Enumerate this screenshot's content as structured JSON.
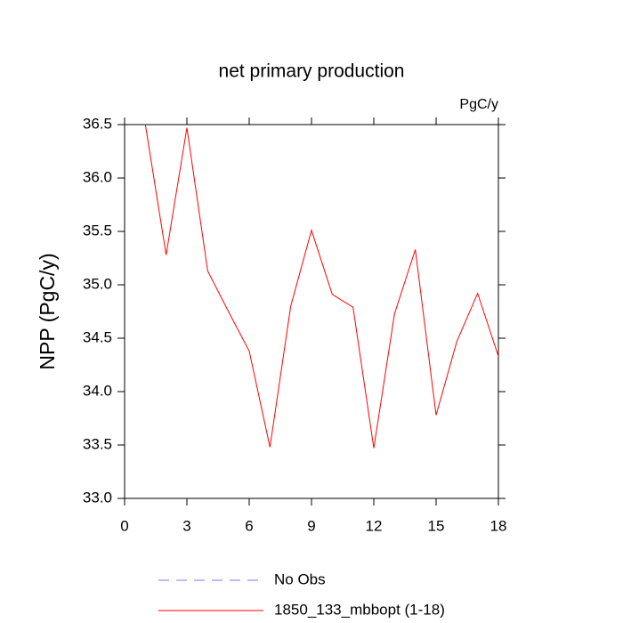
{
  "chart_data": {
    "type": "line",
    "title": "net primary production",
    "units_label": "PgC/y",
    "y_label": "NPP  (PgC/y)",
    "x": [
      1,
      2,
      3,
      4,
      5,
      6,
      7,
      8,
      9,
      10,
      11,
      12,
      13,
      14,
      15,
      16,
      17,
      18
    ],
    "series": [
      {
        "name": "No Obs",
        "color": "#7777ff",
        "dashed": true,
        "values": [
          null,
          null,
          null,
          null,
          null,
          null,
          null,
          null,
          null,
          null,
          null,
          null,
          null,
          null,
          null,
          null,
          null,
          null
        ]
      },
      {
        "name": "1850_133_mbbopt (1-18)",
        "color": "#ff0000",
        "dashed": false,
        "values": [
          36.5,
          35.28,
          36.47,
          35.13,
          34.75,
          34.38,
          33.48,
          34.8,
          35.51,
          34.91,
          34.79,
          33.47,
          34.73,
          35.33,
          33.78,
          34.47,
          34.92,
          34.33
        ]
      }
    ],
    "xlim": [
      0,
      18
    ],
    "xticks": [
      0,
      3,
      6,
      9,
      12,
      15,
      18
    ],
    "ylim": [
      33,
      36.5
    ],
    "yticks": [
      {
        "value": 33,
        "label": "33.0"
      },
      {
        "value": 33.5,
        "label": "33.5"
      },
      {
        "value": 34,
        "label": "34.0"
      },
      {
        "value": 34.5,
        "label": "34.5"
      },
      {
        "value": 35,
        "label": "35.0"
      },
      {
        "value": 35.5,
        "label": "35.5"
      },
      {
        "value": 36,
        "label": "36.0"
      },
      {
        "value": 36.5,
        "label": "36.5"
      }
    ]
  }
}
